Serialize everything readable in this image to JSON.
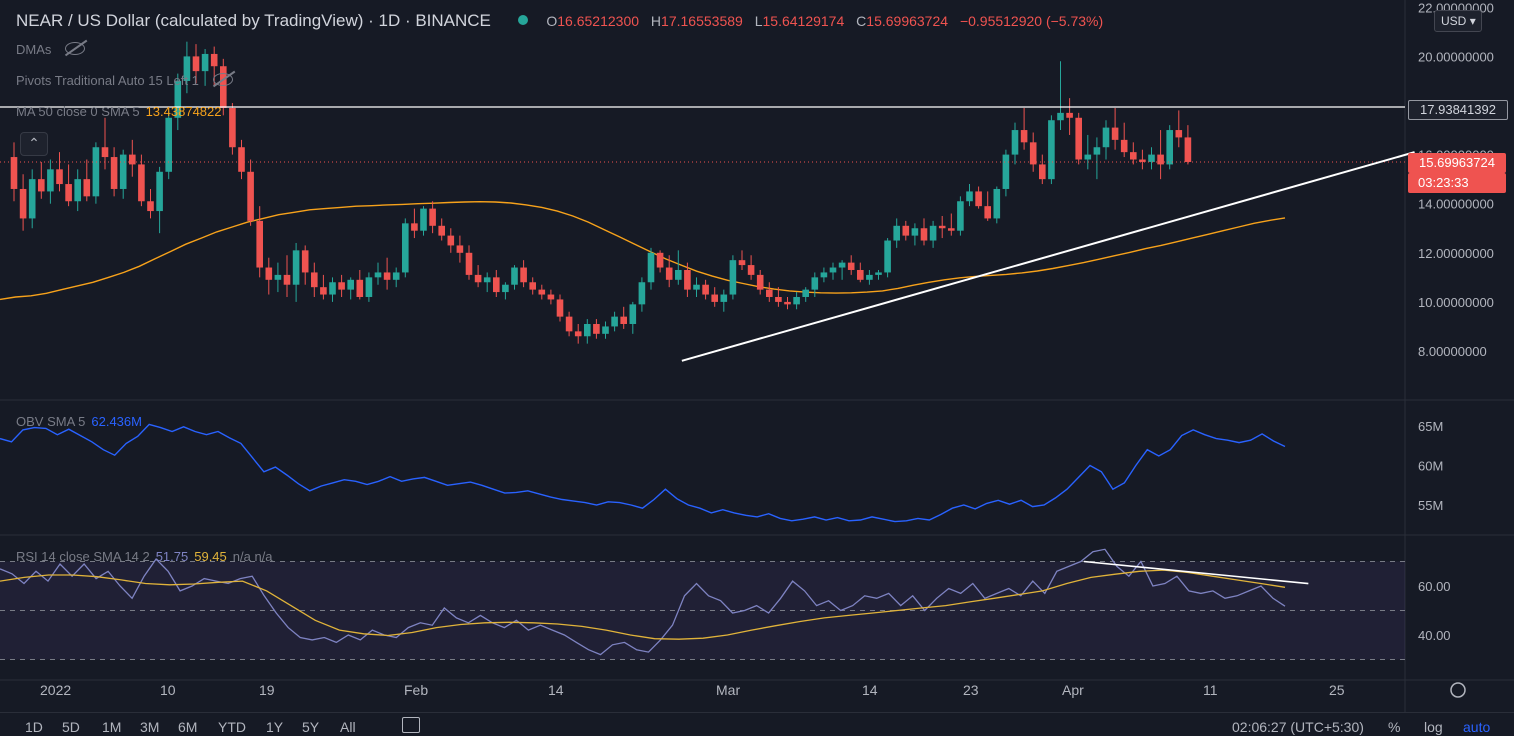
{
  "header": {
    "title": "NEAR / US Dollar (calculated by TradingView) · 1D · BINANCE",
    "open_label": "O",
    "open": "16.65212300",
    "high_label": "H",
    "high": "17.16553589",
    "low_label": "L",
    "low": "15.64129174",
    "close_label": "C",
    "close": "15.69963724",
    "change": "−0.95512920 (−5.73%)"
  },
  "indicators": {
    "dmas": "DMAs",
    "pivots": "Pivots Traditional Auto 15 Left 1",
    "ma_label": "MA 50 close 0 SMA 5",
    "ma_value": "13.43874822",
    "obv_label": "OBV SMA 5",
    "obv_value": "62.436M",
    "rsi_label": "RSI 14 close SMA 14 2",
    "rsi_value": "51.75",
    "rsi_ma_value": "59.45",
    "rsi_na": "n/a n/a"
  },
  "currency": "USD",
  "collapse_icon": "chevron-up-icon",
  "price_labels": {
    "resistance": "17.93841392",
    "last": "15.69963724",
    "countdown": "03:23:33"
  },
  "colors": {
    "up": "#26a69a",
    "down": "#ef5350",
    "ma": "#f7a21b",
    "obv": "#2962ff",
    "rsi": "#7e83c2",
    "rsi_ma": "#e0b33a",
    "trendline": "#ffffff"
  },
  "timeframes": [
    "1D",
    "5D",
    "1M",
    "3M",
    "6M",
    "YTD",
    "1Y",
    "5Y",
    "All"
  ],
  "status": {
    "time": "02:06:27 (UTC+5:30)",
    "percent": "%",
    "log": "log",
    "auto": "auto"
  },
  "chart_data": [
    {
      "type": "candlestick",
      "title": "NEAR / US Dollar (calculated by TradingView)",
      "interval": "1D",
      "x_tick_labels": [
        "2022",
        "10",
        "19",
        "Feb",
        "14",
        "Mar",
        "14",
        "23",
        "Apr",
        "11",
        "25"
      ],
      "y_tick_labels": [
        "8.00000000",
        "10.00000000",
        "12.00000000",
        "14.00000000",
        "16.00000000",
        "18.00000000",
        "20.00000000",
        "22.00000000"
      ],
      "ylim": [
        6.0,
        22.0
      ],
      "candles": [
        [
          15.9,
          16.5,
          14.1,
          14.6
        ],
        [
          14.6,
          15.2,
          12.9,
          13.4
        ],
        [
          13.4,
          15.4,
          13.0,
          15.0
        ],
        [
          15.0,
          15.7,
          14.2,
          14.5
        ],
        [
          14.5,
          15.8,
          14.0,
          15.4
        ],
        [
          15.4,
          16.1,
          14.5,
          14.8
        ],
        [
          14.8,
          15.6,
          13.9,
          14.1
        ],
        [
          14.1,
          15.4,
          13.7,
          15.0
        ],
        [
          15.0,
          15.8,
          14.1,
          14.3
        ],
        [
          14.3,
          16.5,
          14.0,
          16.3
        ],
        [
          16.3,
          17.5,
          15.4,
          15.9
        ],
        [
          15.9,
          16.3,
          14.3,
          14.6
        ],
        [
          14.6,
          16.2,
          14.2,
          16.0
        ],
        [
          16.0,
          16.6,
          15.1,
          15.6
        ],
        [
          15.6,
          16.0,
          13.9,
          14.1
        ],
        [
          14.1,
          14.6,
          13.4,
          13.7
        ],
        [
          13.7,
          15.5,
          12.8,
          15.3
        ],
        [
          15.3,
          17.8,
          15.0,
          17.5
        ],
        [
          17.5,
          19.3,
          17.0,
          19.0
        ],
        [
          19.0,
          20.6,
          18.5,
          20.0
        ],
        [
          20.0,
          20.5,
          18.9,
          19.4
        ],
        [
          19.4,
          20.3,
          18.8,
          20.1
        ],
        [
          20.1,
          20.4,
          18.8,
          19.6
        ],
        [
          19.6,
          19.9,
          17.6,
          17.9
        ],
        [
          17.9,
          18.1,
          16.0,
          16.3
        ],
        [
          16.3,
          16.6,
          15.0,
          15.3
        ],
        [
          15.3,
          15.8,
          13.1,
          13.3
        ],
        [
          13.3,
          13.9,
          11.0,
          11.4
        ],
        [
          11.4,
          11.8,
          10.3,
          10.9
        ],
        [
          10.9,
          11.6,
          10.4,
          11.1
        ],
        [
          11.1,
          11.9,
          10.2,
          10.7
        ],
        [
          10.7,
          12.4,
          10.0,
          12.1
        ],
        [
          12.1,
          12.3,
          10.7,
          11.2
        ],
        [
          11.2,
          11.6,
          10.2,
          10.6
        ],
        [
          10.6,
          11.1,
          10.1,
          10.3
        ],
        [
          10.3,
          11.0,
          10.0,
          10.8
        ],
        [
          10.8,
          11.1,
          10.2,
          10.5
        ],
        [
          10.5,
          11.0,
          10.1,
          10.9
        ],
        [
          10.9,
          11.3,
          10.1,
          10.2
        ],
        [
          10.2,
          11.2,
          10.0,
          11.0
        ],
        [
          11.0,
          11.6,
          10.7,
          11.2
        ],
        [
          11.2,
          11.8,
          10.5,
          10.9
        ],
        [
          10.9,
          11.4,
          10.6,
          11.2
        ],
        [
          11.2,
          13.4,
          11.0,
          13.2
        ],
        [
          13.2,
          13.8,
          12.6,
          12.9
        ],
        [
          12.9,
          13.9,
          12.7,
          13.8
        ],
        [
          13.8,
          14.1,
          12.8,
          13.1
        ],
        [
          13.1,
          13.4,
          12.5,
          12.7
        ],
        [
          12.7,
          13.0,
          12.0,
          12.3
        ],
        [
          12.3,
          12.7,
          11.6,
          12.0
        ],
        [
          12.0,
          12.3,
          10.9,
          11.1
        ],
        [
          11.1,
          11.5,
          10.6,
          10.8
        ],
        [
          10.8,
          11.2,
          10.4,
          11.0
        ],
        [
          11.0,
          11.3,
          10.2,
          10.4
        ],
        [
          10.4,
          10.8,
          10.1,
          10.7
        ],
        [
          10.7,
          11.5,
          10.5,
          11.4
        ],
        [
          11.4,
          11.7,
          10.6,
          10.8
        ],
        [
          10.8,
          11.0,
          10.3,
          10.5
        ],
        [
          10.5,
          10.7,
          10.1,
          10.3
        ],
        [
          10.3,
          10.5,
          9.9,
          10.1
        ],
        [
          10.1,
          10.3,
          9.2,
          9.4
        ],
        [
          9.4,
          9.6,
          8.6,
          8.8
        ],
        [
          8.8,
          9.1,
          8.3,
          8.6
        ],
        [
          8.6,
          9.3,
          8.3,
          9.1
        ],
        [
          9.1,
          9.3,
          8.5,
          8.7
        ],
        [
          8.7,
          9.2,
          8.5,
          9.0
        ],
        [
          9.0,
          9.6,
          8.8,
          9.4
        ],
        [
          9.4,
          9.8,
          8.9,
          9.1
        ],
        [
          9.1,
          10.0,
          8.7,
          9.9
        ],
        [
          9.9,
          11.0,
          9.6,
          10.8
        ],
        [
          10.8,
          12.2,
          10.5,
          12.0
        ],
        [
          12.0,
          12.1,
          11.2,
          11.4
        ],
        [
          11.4,
          11.9,
          10.6,
          10.9
        ],
        [
          10.9,
          12.1,
          10.7,
          11.3
        ],
        [
          11.3,
          11.6,
          10.2,
          10.5
        ],
        [
          10.5,
          11.0,
          10.2,
          10.7
        ],
        [
          10.7,
          10.9,
          10.1,
          10.3
        ],
        [
          10.3,
          10.6,
          9.8,
          10.0
        ],
        [
          10.0,
          10.5,
          9.6,
          10.3
        ],
        [
          10.3,
          11.9,
          10.1,
          11.7
        ],
        [
          11.7,
          12.1,
          11.3,
          11.5
        ],
        [
          11.5,
          11.9,
          10.9,
          11.1
        ],
        [
          11.1,
          11.3,
          10.3,
          10.5
        ],
        [
          10.5,
          10.8,
          10.0,
          10.2
        ],
        [
          10.2,
          10.6,
          9.8,
          10.0
        ],
        [
          10.0,
          10.2,
          9.7,
          9.9
        ],
        [
          9.9,
          10.4,
          9.7,
          10.2
        ],
        [
          10.2,
          10.6,
          10.0,
          10.5
        ],
        [
          10.5,
          11.2,
          10.2,
          11.0
        ],
        [
          11.0,
          11.4,
          10.8,
          11.2
        ],
        [
          11.2,
          11.6,
          10.9,
          11.4
        ],
        [
          11.4,
          11.7,
          10.9,
          11.6
        ],
        [
          11.6,
          11.9,
          11.1,
          11.3
        ],
        [
          11.3,
          11.6,
          10.8,
          10.9
        ],
        [
          10.9,
          11.3,
          10.7,
          11.1
        ],
        [
          11.1,
          11.3,
          10.9,
          11.2
        ],
        [
          11.2,
          12.6,
          11.0,
          12.5
        ],
        [
          12.5,
          13.4,
          12.2,
          13.1
        ],
        [
          13.1,
          13.3,
          12.5,
          12.7
        ],
        [
          12.7,
          13.2,
          12.3,
          13.0
        ],
        [
          13.0,
          13.4,
          12.3,
          12.5
        ],
        [
          12.5,
          13.3,
          12.2,
          13.1
        ],
        [
          13.1,
          13.5,
          12.6,
          13.0
        ],
        [
          13.0,
          13.6,
          12.7,
          12.9
        ],
        [
          12.9,
          14.3,
          12.7,
          14.1
        ],
        [
          14.1,
          14.8,
          13.9,
          14.5
        ],
        [
          14.5,
          14.7,
          13.8,
          13.9
        ],
        [
          13.9,
          14.5,
          13.3,
          13.4
        ],
        [
          13.4,
          14.7,
          13.2,
          14.6
        ],
        [
          14.6,
          16.2,
          14.3,
          16.0
        ],
        [
          16.0,
          17.3,
          15.6,
          17.0
        ],
        [
          17.0,
          17.9,
          16.2,
          16.5
        ],
        [
          16.5,
          16.9,
          15.3,
          15.6
        ],
        [
          15.6,
          16.0,
          14.8,
          15.0
        ],
        [
          15.0,
          17.6,
          14.8,
          17.4
        ],
        [
          17.4,
          19.8,
          17.0,
          17.7
        ],
        [
          17.7,
          18.3,
          16.8,
          17.5
        ],
        [
          17.5,
          17.7,
          15.6,
          15.8
        ],
        [
          15.8,
          16.8,
          15.4,
          16.0
        ],
        [
          16.0,
          16.7,
          15.0,
          16.3
        ],
        [
          16.3,
          17.4,
          15.8,
          17.1
        ],
        [
          17.1,
          17.9,
          16.2,
          16.6
        ],
        [
          16.6,
          17.3,
          15.9,
          16.1
        ],
        [
          16.1,
          16.5,
          15.6,
          15.8
        ],
        [
          15.8,
          16.2,
          15.4,
          15.7
        ],
        [
          15.7,
          16.3,
          15.4,
          16.0
        ],
        [
          16.0,
          17.0,
          15.0,
          15.6
        ],
        [
          15.6,
          17.2,
          15.4,
          17.0
        ],
        [
          17.0,
          17.8,
          16.3,
          16.7
        ],
        [
          16.7,
          17.2,
          15.6,
          15.7
        ]
      ],
      "ma_50": [
        10.1,
        10.2,
        10.25,
        10.35,
        10.5,
        10.65,
        10.8,
        11.0,
        11.2,
        11.45,
        11.75,
        12.05,
        12.35,
        12.6,
        12.85,
        13.05,
        13.25,
        13.4,
        13.55,
        13.65,
        13.75,
        13.8,
        13.85,
        13.9,
        13.92,
        13.95,
        13.97,
        14.0,
        14.02,
        14.05,
        14.07,
        14.08,
        14.07,
        14.03,
        13.95,
        13.85,
        13.7,
        13.5,
        13.25,
        12.95,
        12.65,
        12.35,
        12.05,
        11.75,
        11.5,
        11.25,
        11.05,
        10.88,
        10.75,
        10.62,
        10.52,
        10.45,
        10.4,
        10.37,
        10.36,
        10.37,
        10.4,
        10.45,
        10.55,
        10.68,
        10.8,
        10.9,
        10.98,
        11.04,
        11.08,
        11.12,
        11.18,
        11.26,
        11.36,
        11.48,
        11.6,
        11.74,
        11.88,
        12.02,
        12.17,
        12.3,
        12.45,
        12.6,
        12.75,
        12.9,
        13.05,
        13.2,
        13.32,
        13.42
      ],
      "horizontal_level": 17.93841392,
      "trendlines": [
        [
          8.8,
          7.6
        ],
        [
          29.4,
          16.1
        ]
      ]
    },
    {
      "type": "line",
      "name": "OBV SMA 5",
      "y_tick_labels": [
        "55M",
        "60M",
        "65M"
      ],
      "ylim": [
        51.0,
        68.0
      ],
      "values": [
        63.4,
        63.0,
        64.5,
        64.8,
        64.7,
        63.9,
        64.6,
        63.8,
        63.0,
        62.0,
        61.3,
        62.8,
        63.7,
        65.2,
        64.8,
        64.3,
        64.9,
        64.3,
        63.9,
        64.3,
        63.5,
        62.8,
        61.0,
        59.2,
        59.8,
        58.8,
        57.7,
        56.8,
        57.4,
        57.8,
        58.2,
        58.0,
        57.6,
        58.0,
        58.6,
        58.0,
        58.3,
        58.5,
        58.0,
        57.5,
        57.7,
        57.9,
        57.5,
        57.0,
        56.5,
        56.6,
        56.8,
        56.4,
        56.0,
        55.7,
        55.5,
        55.3,
        55.0,
        55.4,
        55.3,
        55.0,
        54.6,
        55.7,
        57.0,
        55.8,
        55.0,
        54.6,
        54.0,
        54.4,
        54.0,
        53.7,
        53.5,
        53.9,
        53.3,
        53.0,
        53.2,
        53.5,
        53.1,
        53.4,
        53.0,
        53.1,
        53.5,
        53.2,
        52.9,
        53.0,
        53.3,
        53.1,
        53.8,
        54.6,
        55.0,
        54.5,
        55.2,
        55.6,
        55.1,
        55.6,
        54.8,
        55.0,
        55.9,
        57.0,
        58.5,
        60.0,
        59.2,
        57.0,
        57.8,
        60.0,
        62.0,
        61.2,
        62.0,
        63.8,
        64.5,
        63.9,
        63.4,
        63.2,
        62.9,
        63.2,
        64.0,
        63.1,
        62.4
      ]
    },
    {
      "type": "line",
      "name": "RSI 14 close SMA 14 2",
      "y_tick_labels": [
        "40.00",
        "60.00"
      ],
      "ylim": [
        28.0,
        76.0
      ],
      "bands": [
        70,
        50,
        30
      ],
      "series": [
        {
          "name": "RSI",
          "values": [
            67.0,
            65.0,
            61.0,
            66.0,
            62.0,
            69.0,
            64.0,
            69.0,
            63.0,
            66.0,
            60.0,
            55.0,
            64.0,
            71.0,
            66.0,
            58.0,
            60.0,
            63.0,
            62.0,
            61.0,
            63.0,
            64.0,
            56.0,
            49.0,
            43.0,
            39.0,
            38.0,
            39.0,
            37.0,
            40.0,
            38.0,
            42.0,
            40.0,
            39.0,
            43.0,
            45.0,
            44.0,
            51.0,
            47.0,
            45.0,
            48.0,
            45.0,
            43.0,
            46.0,
            42.0,
            44.0,
            42.0,
            40.0,
            37.0,
            34.0,
            32.0,
            36.0,
            37.0,
            34.0,
            33.0,
            38.0,
            44.0,
            56.0,
            61.0,
            56.0,
            54.0,
            49.0,
            50.0,
            52.0,
            49.0,
            55.0,
            62.0,
            58.0,
            52.0,
            54.0,
            50.0,
            52.0,
            56.0,
            55.0,
            57.0,
            52.0,
            56.0,
            50.0,
            55.0,
            59.0,
            57.0,
            61.0,
            55.0,
            57.0,
            59.0,
            56.0,
            62.0,
            57.0,
            66.0,
            68.0,
            70.0,
            74.0,
            75.0,
            68.0,
            64.0,
            70.0,
            60.0,
            61.0,
            64.0,
            58.0,
            57.0,
            58.0,
            55.0,
            56.0,
            58.0,
            60.0,
            55.0,
            51.75
          ]
        },
        {
          "name": "SMA",
          "values": [
            62.0,
            63.5,
            64.5,
            64.5,
            63.8,
            62.5,
            61.0,
            60.5,
            60.8,
            61.5,
            62.0,
            58.0,
            52.0,
            46.0,
            42.0,
            40.5,
            39.8,
            41.0,
            43.0,
            44.3,
            45.0,
            45.2,
            45.0,
            44.5,
            43.5,
            42.0,
            40.0,
            38.5,
            38.3,
            38.7,
            40.0,
            42.0,
            43.8,
            45.5,
            47.0,
            48.0,
            49.0,
            50.0,
            51.0,
            52.0,
            53.5,
            55.0,
            56.5,
            58.0,
            61.0,
            63.5,
            64.8,
            66.0,
            66.5,
            65.5,
            64.0,
            62.5,
            61.0,
            59.45
          ]
        }
      ],
      "trendline": [
        [
          74.5,
          70.0
        ],
        [
          104.5,
          61.0
        ]
      ]
    }
  ]
}
